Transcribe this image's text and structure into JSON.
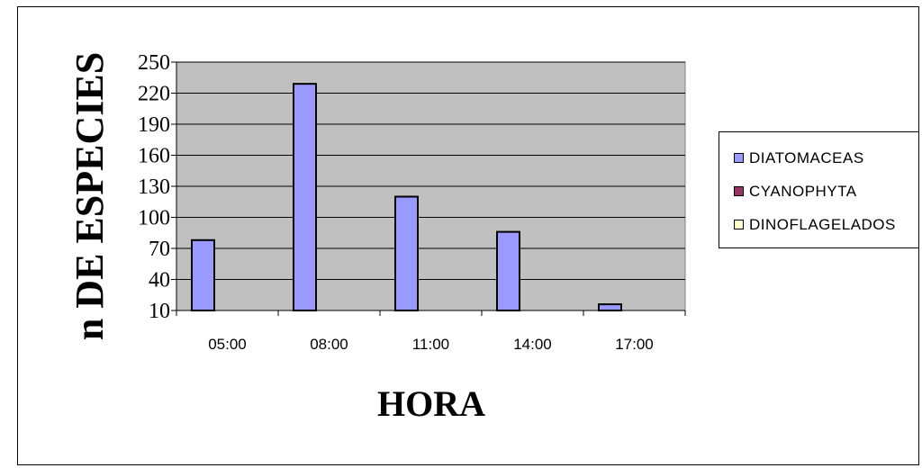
{
  "chart_data": {
    "type": "bar",
    "title": "",
    "xlabel": "HORA",
    "ylabel": "n DE ESPECIES",
    "categories": [
      "05:00",
      "08:00",
      "11:00",
      "14:00",
      "17:00"
    ],
    "ylim": [
      10,
      250
    ],
    "yticks": [
      10,
      40,
      70,
      100,
      130,
      160,
      190,
      220,
      250
    ],
    "grid": true,
    "legend_position": "right",
    "series": [
      {
        "name": "DIATOMACEAS",
        "values": [
          78,
          229,
          120,
          86,
          16
        ],
        "color": "#9999ff"
      },
      {
        "name": "CYANOPHYTA",
        "values": [
          0,
          0,
          0,
          0,
          0
        ],
        "color": "#993366"
      },
      {
        "name": "DINOFLAGELADOS",
        "values": [
          0,
          0,
          0,
          0,
          0
        ],
        "color": "#ffffcc"
      }
    ],
    "plot_background": "#c0c0c0"
  }
}
